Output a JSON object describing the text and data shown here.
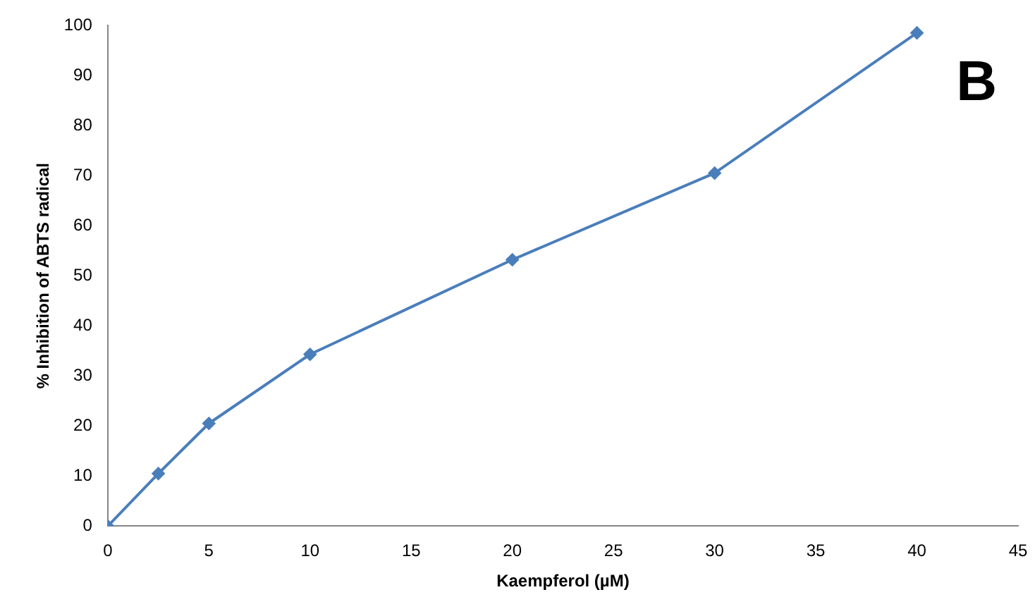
{
  "chart_data": {
    "type": "line",
    "xlabel": "Kaempferol (µM)",
    "ylabel": "% Inhibition of ABTS radical",
    "x": [
      0,
      2.5,
      5,
      10,
      20,
      30,
      40
    ],
    "series": [
      {
        "color": "#4a7ebb",
        "values": [
          0,
          10.5,
          20.5,
          34.3,
          53.2,
          70.5,
          98.5
        ]
      }
    ],
    "xlim": [
      0,
      45
    ],
    "xticks": [
      0,
      5,
      10,
      15,
      20,
      25,
      30,
      35,
      40,
      45
    ],
    "ylim": [
      0,
      100
    ],
    "yticks": [
      0,
      10,
      20,
      30,
      40,
      50,
      60,
      70,
      80,
      90,
      100
    ],
    "grid": false,
    "legend": false,
    "marker": "diamond",
    "line_style": "solid",
    "annotations": [
      "B"
    ]
  }
}
